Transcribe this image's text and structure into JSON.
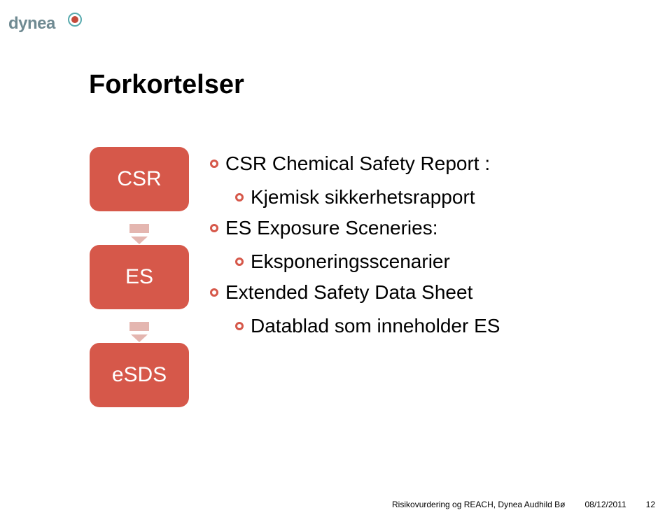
{
  "colors": {
    "brand_red": "#c44a3a",
    "brand_teal": "#58aaae",
    "logo_text": "#6f8a92",
    "title": "#000000",
    "badge_bg": "#d6584a",
    "badge_text": "#ffffff",
    "bullet_outer": "#d6584a",
    "bullet_inner": "#ffffff",
    "arrow": "#e4b6b0",
    "body_text": "#000000",
    "footer_text": "#000000"
  },
  "typography": {
    "title_fontsize": 38,
    "badge_fontsize": 30,
    "body_fontsize": 28,
    "sub_fontsize": 28,
    "footer_fontsize": 12,
    "logo_fontsize": 24,
    "title_weight": "700",
    "body_weight": "400"
  },
  "logo": {
    "text": "dynea"
  },
  "title": "Forkortelser",
  "items": [
    {
      "badge": "CSR",
      "main": "CSR Chemical Safety Report :",
      "sub": "Kjemisk sikkerhetsrapport"
    },
    {
      "badge": "ES",
      "main": "ES Exposure Sceneries:",
      "sub": "Eksponeringsscenarier"
    },
    {
      "badge": "eSDS",
      "main": "Extended Safety Data Sheet",
      "sub": "Datablad som inneholder ES"
    }
  ],
  "footer": {
    "left": "Risikovurdering og REACH, Dynea Audhild Bø",
    "date": "08/12/2011",
    "page": "12"
  }
}
